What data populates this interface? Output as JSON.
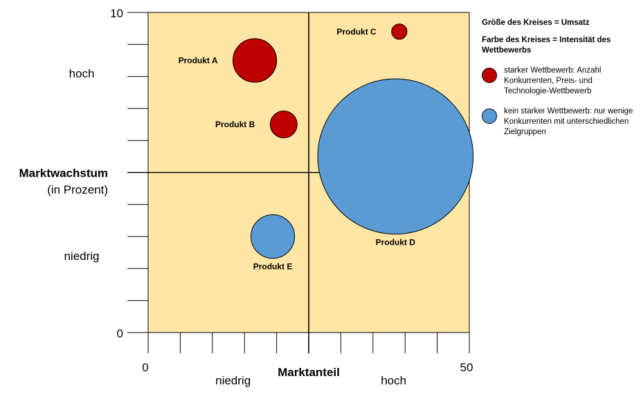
{
  "chart_data": {
    "type": "scatter",
    "title": "",
    "xlabel": "Marktanteil",
    "ylabel": "Marktwachstum",
    "ylabel_sub": "(in Prozent)",
    "xlim": [
      0,
      50
    ],
    "ylim": [
      0,
      10
    ],
    "x_ticks": [
      0,
      5,
      10,
      15,
      20,
      25,
      30,
      35,
      40,
      45,
      50
    ],
    "y_ticks": [
      0,
      1,
      2,
      3,
      4,
      5,
      6,
      7,
      8,
      9,
      10
    ],
    "x_tick_labels": [
      {
        "value": 0,
        "label": "0"
      },
      {
        "value": 50,
        "label": "50"
      }
    ],
    "y_tick_labels": [
      {
        "value": 0,
        "label": "0"
      },
      {
        "value": 10,
        "label": "10"
      }
    ],
    "x_category_labels": [
      {
        "value": 13,
        "label": "niedrig"
      },
      {
        "value": 38,
        "label": "hoch"
      }
    ],
    "y_category_labels": [
      {
        "value": 8.1,
        "label": "hoch"
      },
      {
        "value": 2.4,
        "label": "niedrig"
      }
    ],
    "quadrant_dividers": {
      "x": 25,
      "y": 5
    },
    "background_color": "#FFE6A5",
    "points": [
      {
        "label": "Produkt A",
        "x": 16.6,
        "y": 8.5,
        "size_radius": 3.4,
        "category": "strong",
        "label_side": "left"
      },
      {
        "label": "Produkt B",
        "x": 21.1,
        "y": 6.5,
        "size_radius": 2.1,
        "category": "strong",
        "label_side": "left"
      },
      {
        "label": "Produkt C",
        "x": 39.1,
        "y": 9.4,
        "size_radius": 1.2,
        "category": "strong",
        "label_side": "left"
      },
      {
        "label": "Produkt D",
        "x": 38.5,
        "y": 5.5,
        "size_radius": 12.1,
        "category": "weak",
        "label_side": "below"
      },
      {
        "label": "Produkt E",
        "x": 19.4,
        "y": 3.0,
        "size_radius": 3.4,
        "category": "weak",
        "label_side": "below"
      }
    ],
    "colors": {
      "strong": "#C00000",
      "weak": "#5B9BD5"
    },
    "legend": {
      "position": "right",
      "size_note": "Größe des Kreises  = Umsatz",
      "color_note": "Farbe des Kreises  = Intensität des Wettbewerbs",
      "items": [
        {
          "category": "strong",
          "text": "starker Wettbewerb: Anzahl Konkurrenten,  Preis- und Technologie-Wettbewerb"
        },
        {
          "category": "weak",
          "text": "kein starker Wettbewerb: nur wenige Konkurrenten mit unterschiedlichen Zielgruppen"
        }
      ]
    }
  }
}
